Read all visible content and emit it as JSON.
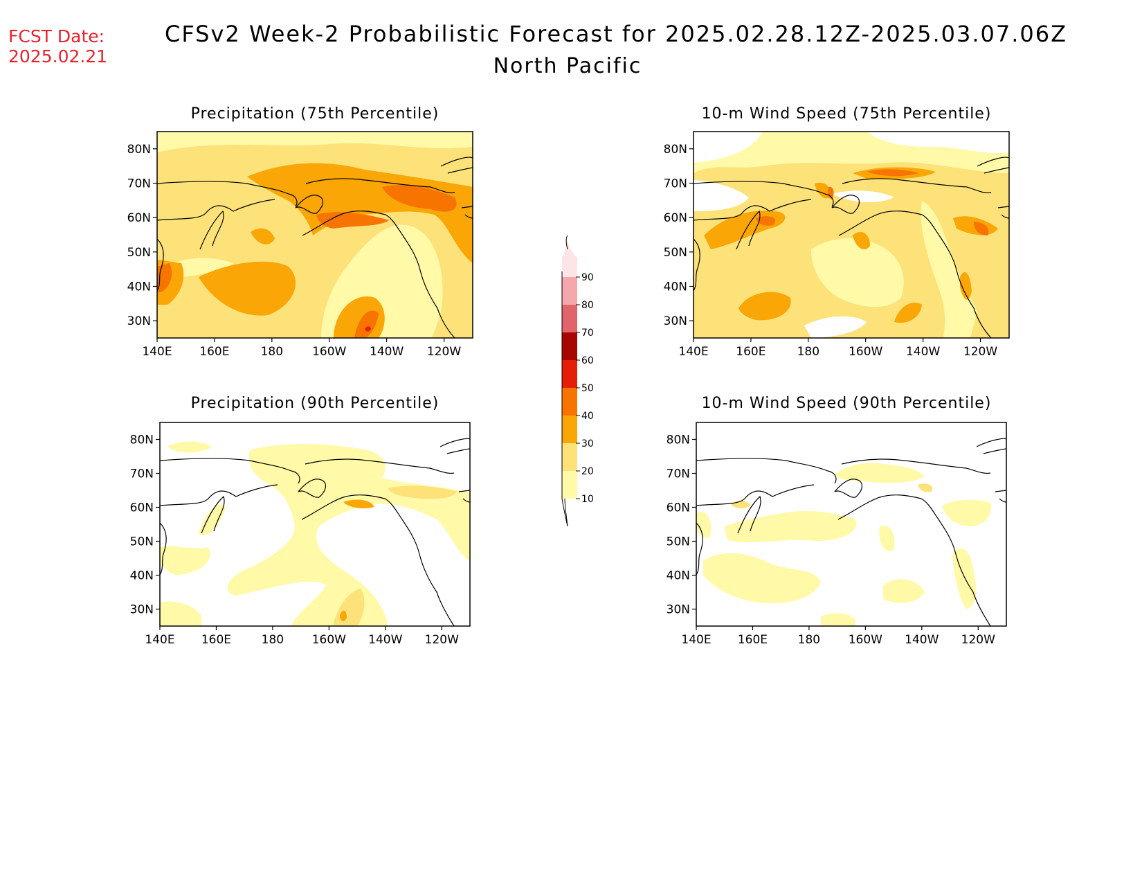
{
  "header": {
    "fcst_label": "FCST Date:",
    "fcst_date": "2025.02.21",
    "title": "CFSv2 Week-2 Probabilistic Forecast for 2025.02.28.12Z-2025.03.07.06Z",
    "region": "North Pacific"
  },
  "axes": {
    "lat_ticks": [
      "80N",
      "70N",
      "60N",
      "50N",
      "40N",
      "30N"
    ],
    "lon_ticks": [
      "140E",
      "160E",
      "180",
      "160W",
      "140W",
      "120W"
    ]
  },
  "panels": [
    {
      "id": "precip75",
      "title": "Precipitation (75th Percentile)"
    },
    {
      "id": "wind75",
      "title": "10-m Wind Speed (75th Percentile)"
    },
    {
      "id": "precip90",
      "title": "Precipitation (90th Percentile)"
    },
    {
      "id": "wind90",
      "title": "10-m Wind Speed (90th Percentile)"
    }
  ],
  "colorbar": {
    "labels": [
      "10",
      "20",
      "30",
      "40",
      "50",
      "60",
      "70",
      "80",
      "90"
    ],
    "colors": [
      "#fff9a8",
      "#fde27a",
      "#f9a606",
      "#f77400",
      "#e41f06",
      "#a80600",
      "#e0656b",
      "#f5a8ac",
      "#fde4e6"
    ]
  }
}
